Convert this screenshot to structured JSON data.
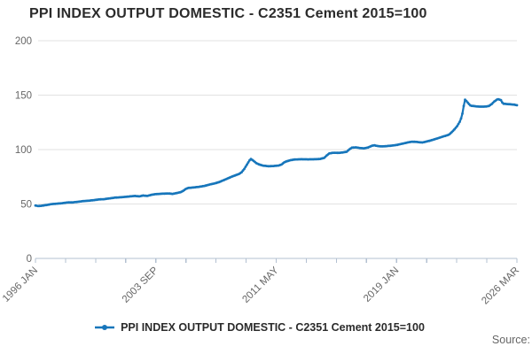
{
  "header": {
    "title": "PPI INDEX OUTPUT DOMESTIC - C2351 Cement 2015=100"
  },
  "legend": {
    "label": "PPI INDEX OUTPUT DOMESTIC - C2351 Cement 2015=100"
  },
  "source": {
    "label": "Source:"
  },
  "colors": {
    "series_blue": "#1776bb",
    "grid": "#e2e2e2",
    "axis": "#b3c0d1",
    "text_dark": "#2b2b2b",
    "text_muted": "#666666"
  },
  "chart_data": {
    "type": "line",
    "title": "PPI INDEX OUTPUT DOMESTIC - C2351 Cement 2015=100",
    "xlabel": "",
    "ylabel": "",
    "ylim": [
      0,
      200
    ],
    "y_ticks": [
      0,
      50,
      100,
      150,
      200
    ],
    "grid": true,
    "legend_position": "bottom",
    "x_axis": {
      "start_label": "1996 JAN",
      "end_label": "2026 MAR",
      "months_span": 362,
      "tick_count": 17,
      "labeled_tick_indices": [
        0,
        4,
        8,
        12,
        16
      ],
      "tick_labels": [
        "1996 JAN",
        "2003 SEP",
        "2011 MAY",
        "2019 JAN",
        "2026 MAR"
      ]
    },
    "series": [
      {
        "name": "PPI INDEX OUTPUT DOMESTIC - C2351 Cement 2015=100",
        "color": "#1776bb",
        "points_month_value": [
          [
            0,
            48.6
          ],
          [
            2,
            48.1
          ],
          [
            4,
            48.3
          ],
          [
            8,
            49.0
          ],
          [
            12,
            49.9
          ],
          [
            16,
            50.3
          ],
          [
            20,
            50.7
          ],
          [
            24,
            51.4
          ],
          [
            28,
            51.5
          ],
          [
            32,
            52.0
          ],
          [
            36,
            52.7
          ],
          [
            40,
            53.0
          ],
          [
            44,
            53.6
          ],
          [
            48,
            54.2
          ],
          [
            52,
            54.5
          ],
          [
            56,
            55.2
          ],
          [
            60,
            55.9
          ],
          [
            64,
            56.2
          ],
          [
            68,
            56.6
          ],
          [
            72,
            57.1
          ],
          [
            75,
            57.4
          ],
          [
            78,
            57.0
          ],
          [
            81,
            57.8
          ],
          [
            84,
            57.4
          ],
          [
            87,
            58.4
          ],
          [
            90,
            59.0
          ],
          [
            92,
            59.2
          ],
          [
            96,
            59.5
          ],
          [
            100,
            59.7
          ],
          [
            103,
            59.3
          ],
          [
            106,
            60.0
          ],
          [
            109,
            60.8
          ],
          [
            111,
            62.0
          ],
          [
            113,
            63.8
          ],
          [
            115,
            64.8
          ],
          [
            119,
            65.2
          ],
          [
            123,
            65.8
          ],
          [
            127,
            66.6
          ],
          [
            131,
            67.9
          ],
          [
            135,
            69.0
          ],
          [
            138,
            70.1
          ],
          [
            141,
            71.6
          ],
          [
            144,
            73.2
          ],
          [
            147,
            74.8
          ],
          [
            150,
            76.2
          ],
          [
            153,
            77.6
          ],
          [
            155,
            79.2
          ],
          [
            157,
            82.2
          ],
          [
            159,
            86.2
          ],
          [
            161,
            90.2
          ],
          [
            162,
            91.4
          ],
          [
            164,
            89.6
          ],
          [
            166,
            87.6
          ],
          [
            168,
            86.4
          ],
          [
            171,
            85.3
          ],
          [
            175,
            84.7
          ],
          [
            179,
            84.9
          ],
          [
            183,
            85.4
          ],
          [
            185,
            86.3
          ],
          [
            187,
            88.2
          ],
          [
            189,
            89.3
          ],
          [
            192,
            90.3
          ],
          [
            195,
            90.9
          ],
          [
            200,
            91.1
          ],
          [
            205,
            91.0
          ],
          [
            210,
            91.1
          ],
          [
            214,
            91.4
          ],
          [
            217,
            92.3
          ],
          [
            219,
            94.6
          ],
          [
            221,
            96.5
          ],
          [
            224,
            97.1
          ],
          [
            228,
            97.0
          ],
          [
            231,
            97.3
          ],
          [
            234,
            98.0
          ],
          [
            236,
            100.2
          ],
          [
            238,
            101.8
          ],
          [
            241,
            102.0
          ],
          [
            244,
            101.4
          ],
          [
            247,
            101.1
          ],
          [
            250,
            101.9
          ],
          [
            253,
            103.5
          ],
          [
            255,
            103.9
          ],
          [
            257,
            103.3
          ],
          [
            260,
            102.9
          ],
          [
            263,
            103.1
          ],
          [
            266,
            103.4
          ],
          [
            269,
            103.8
          ],
          [
            272,
            104.3
          ],
          [
            275,
            105.2
          ],
          [
            277,
            105.7
          ],
          [
            280,
            106.6
          ],
          [
            283,
            107.2
          ],
          [
            286,
            107.1
          ],
          [
            289,
            106.7
          ],
          [
            291,
            106.5
          ],
          [
            294,
            107.4
          ],
          [
            297,
            108.3
          ],
          [
            300,
            109.4
          ],
          [
            303,
            110.6
          ],
          [
            306,
            111.8
          ],
          [
            309,
            112.9
          ],
          [
            311,
            113.8
          ],
          [
            313,
            116.0
          ],
          [
            315,
            118.5
          ],
          [
            317,
            121.5
          ],
          [
            319,
            125.5
          ],
          [
            320,
            128.5
          ],
          [
            321,
            133.0
          ],
          [
            322,
            140.0
          ],
          [
            323,
            145.8
          ],
          [
            324,
            144.6
          ],
          [
            325,
            143.2
          ],
          [
            326,
            141.8
          ],
          [
            327,
            140.6
          ],
          [
            328,
            140.2
          ],
          [
            330,
            139.9
          ],
          [
            333,
            139.5
          ],
          [
            336,
            139.4
          ],
          [
            339,
            139.6
          ],
          [
            341,
            140.1
          ],
          [
            343,
            141.8
          ],
          [
            345,
            144.2
          ],
          [
            347,
            145.9
          ],
          [
            348,
            146.3
          ],
          [
            350,
            145.4
          ],
          [
            351,
            143.2
          ],
          [
            352,
            142.1
          ],
          [
            354,
            141.9
          ],
          [
            356,
            141.7
          ],
          [
            358,
            141.5
          ],
          [
            360,
            141.3
          ],
          [
            362,
            140.7
          ]
        ]
      }
    ]
  }
}
